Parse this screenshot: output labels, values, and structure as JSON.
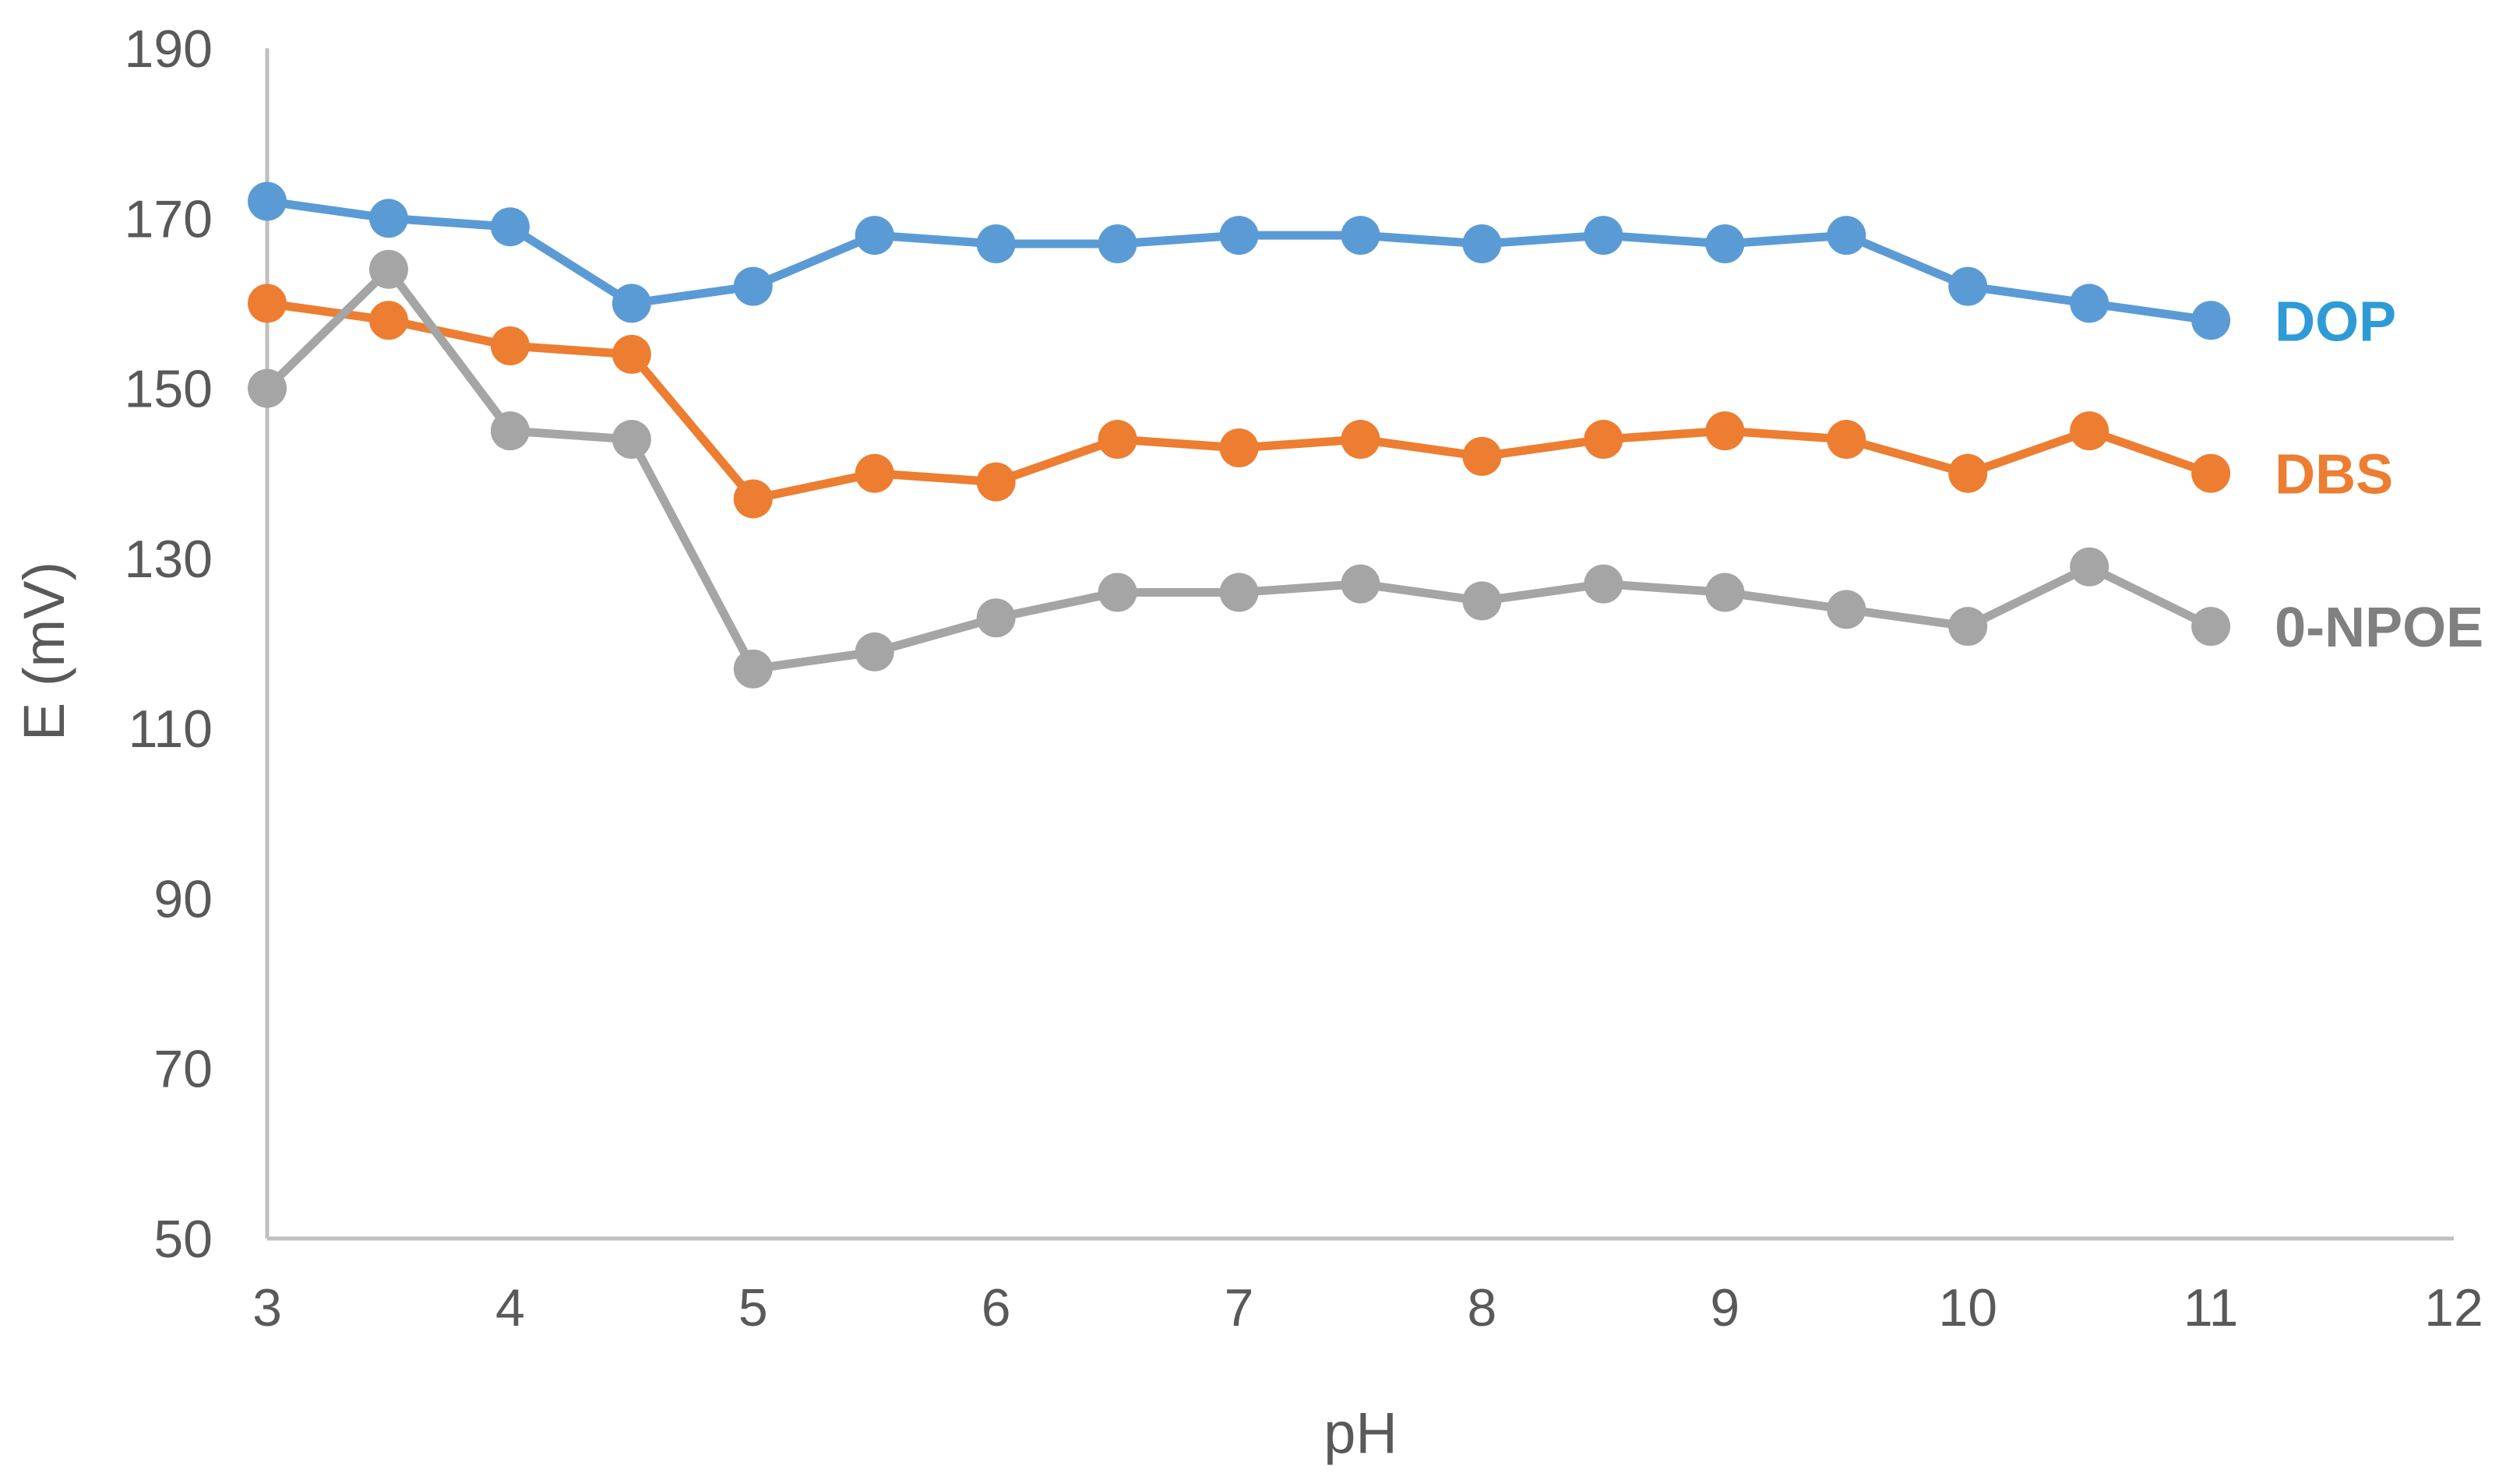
{
  "chart_data": {
    "type": "line",
    "title": "",
    "xlabel": "pH",
    "ylabel": "E (mV)",
    "xlim": [
      3,
      12
    ],
    "ylim": [
      50,
      190
    ],
    "x_ticks": [
      3,
      4,
      5,
      6,
      7,
      8,
      9,
      10,
      11,
      12
    ],
    "y_ticks": [
      50,
      70,
      90,
      110,
      130,
      150,
      170,
      190
    ],
    "grid": false,
    "legend": "inline labels at right end of each series",
    "x": [
      3,
      3.5,
      4,
      4.5,
      5,
      5.5,
      6,
      6.5,
      7,
      7.5,
      8,
      8.5,
      9,
      9.5,
      10,
      10.5,
      11
    ],
    "series": [
      {
        "name": "DOP",
        "color": "#5B9BD5",
        "label_color": "#2E9BD6",
        "values": [
          172,
          170,
          169,
          160,
          162,
          168,
          167,
          167,
          168,
          168,
          167,
          168,
          167,
          168,
          162,
          160,
          158
        ]
      },
      {
        "name": "DBS",
        "color": "#ED7D31",
        "label_color": "#ED7D31",
        "values": [
          160,
          158,
          155,
          154,
          137,
          140,
          139,
          144,
          143,
          144,
          142,
          144,
          145,
          144,
          140,
          145,
          140
        ]
      },
      {
        "name": "0-NPOE",
        "color": "#A5A5A5",
        "label_color": "#808080",
        "values": [
          150,
          164,
          145,
          144,
          117,
          119,
          123,
          126,
          126,
          127,
          125,
          127,
          126,
          124,
          122,
          129,
          122
        ]
      }
    ]
  }
}
